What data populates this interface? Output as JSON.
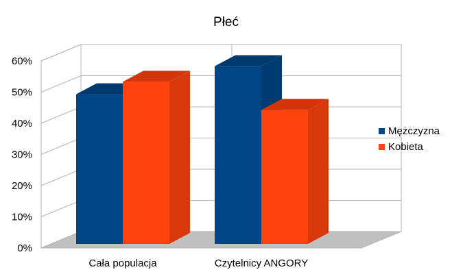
{
  "chart_data": {
    "type": "bar",
    "title": "Płeć",
    "categories": [
      "Cała populacja",
      "Czytelnicy ANGORY"
    ],
    "series": [
      {
        "name": "Mężczyzna",
        "color": "#004586",
        "values": [
          48,
          57
        ]
      },
      {
        "name": "Kobieta",
        "color": "#ff420e",
        "values": [
          52,
          43
        ]
      }
    ],
    "yticks": [
      "0%",
      "10%",
      "20%",
      "30%",
      "40%",
      "50%",
      "60%"
    ],
    "ylim": [
      0,
      60
    ],
    "grid": true,
    "legend": "right",
    "style": "3d"
  }
}
